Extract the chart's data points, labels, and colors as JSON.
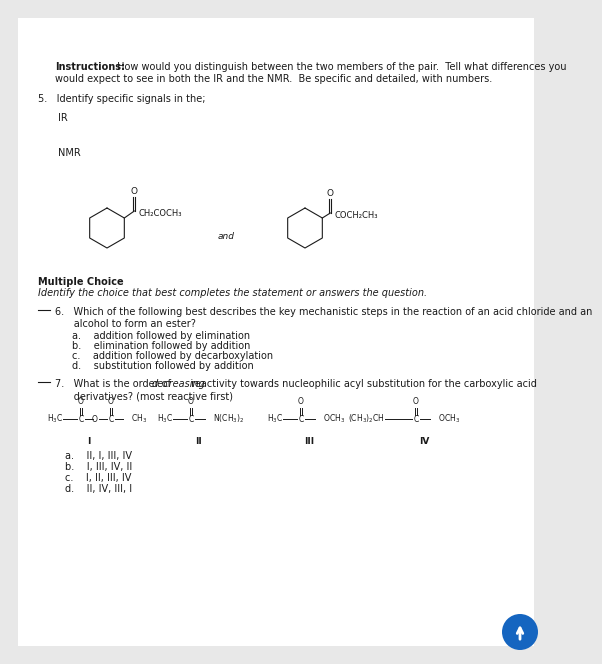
{
  "bg_color": "#e8e8e8",
  "page_bg": "#ffffff",
  "instructions_bold": "Instructions:",
  "instructions_rest": " How would you distinguish between the two members of the pair.  Tell what differences you",
  "instructions_line2": "would expect to see in both the IR and the NMR.  Be specific and detailed, with numbers.",
  "q5_text": "5.   Identify specific signals in the;",
  "ir_label": "IR",
  "nmr_label": "NMR",
  "and_text": "and",
  "mc_bold": "Multiple Choice",
  "mc_italic": "Identify the choice that best completes the statement or answers the question.",
  "q6_line1": "6.   Which of the following best describes the key mechanistic steps in the reaction of an acid chloride and an",
  "q6_line2": "      alcohol to form an ester?",
  "q6a": "a.    addition followed by elimination",
  "q6b": "b.    elimination followed by addition",
  "q6c": "c.    addition followed by decarboxylation",
  "q6d": "d.    substitution followed by addition",
  "q7_pre": "7.   What is the order of ",
  "q7_italic": "decreasing",
  "q7_post": " reactivity towards nucleophilic acyl substitution for the carboxylic acid",
  "q7_line2": "      derivatives? (most reactive first)",
  "q7a": "a.    II, I, III, IV",
  "q7b": "b.    I, III, IV, II",
  "q7c": "c.    I, II, III, IV",
  "q7d": "d.    II, IV, III, I",
  "font_size": 7.0,
  "font_size_chem": 6.5,
  "text_color": "#1a1a1a",
  "line_color": "#1a1a1a"
}
